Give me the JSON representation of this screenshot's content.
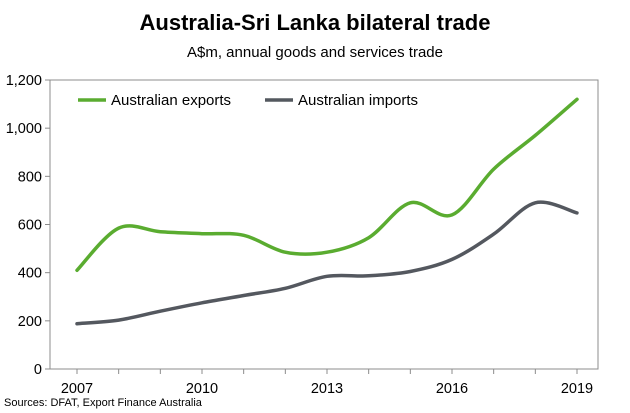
{
  "header": {
    "title": "Australia-Sri Lanka bilateral trade",
    "subtitle": "A$m, annual goods and services trade"
  },
  "footer": {
    "source": "Sources: DFAT, Export Finance Australia"
  },
  "chart_data": {
    "type": "line",
    "title": "Australia-Sri Lanka bilateral trade",
    "subtitle": "A$m, annual goods and services trade",
    "x": [
      2007,
      2008,
      2009,
      2010,
      2011,
      2012,
      2013,
      2014,
      2015,
      2016,
      2017,
      2018,
      2019
    ],
    "xticks": [
      "2007",
      "2010",
      "2013",
      "2016",
      "2019"
    ],
    "xlim": [
      2007,
      2019
    ],
    "yticks": [
      "0",
      "200",
      "400",
      "600",
      "800",
      "1,000",
      "1,200"
    ],
    "ylim": [
      0,
      1200
    ],
    "grid": false,
    "legend": "top-left",
    "series": [
      {
        "name": "Australian exports",
        "color": "#5aac30",
        "values": [
          410,
          585,
          570,
          562,
          555,
          485,
          485,
          545,
          690,
          640,
          830,
          970,
          1120
        ]
      },
      {
        "name": "Australian imports",
        "color": "#54585f",
        "values": [
          188,
          203,
          240,
          275,
          305,
          335,
          385,
          387,
          405,
          455,
          560,
          690,
          648
        ]
      }
    ]
  }
}
